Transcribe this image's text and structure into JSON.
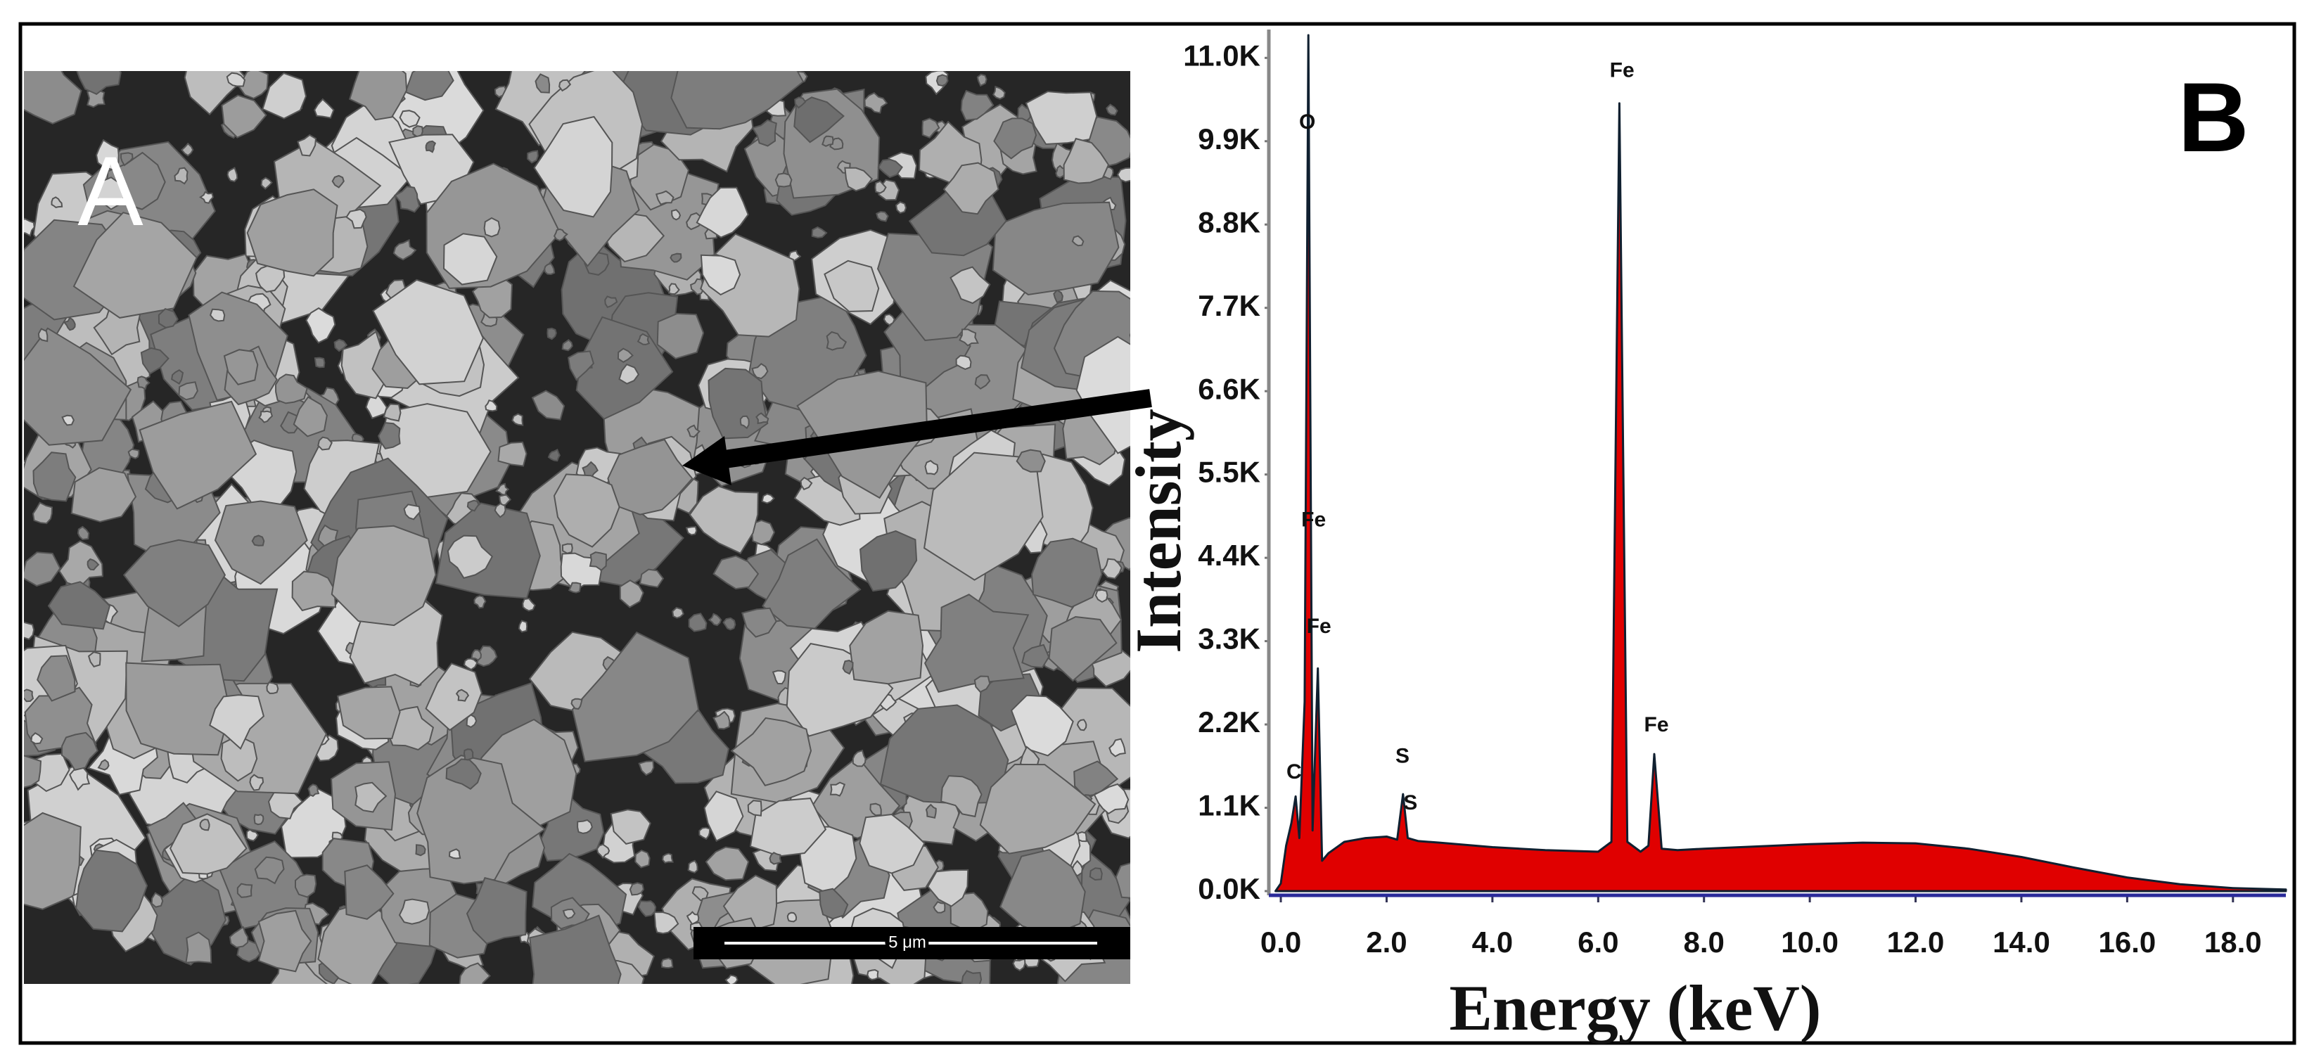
{
  "panel_labels": [
    "A",
    "B"
  ],
  "scale_bar": "5 μm",
  "chart_data": {
    "type": "area",
    "x_label": "Energy (keV)",
    "y_label": "Intensity",
    "color": "#e00000",
    "line_color": "#102030",
    "x": [
      -0.1,
      0.0,
      0.1,
      0.2,
      0.28,
      0.35,
      0.45,
      0.52,
      0.6,
      0.7,
      0.78,
      0.9,
      1.2,
      1.6,
      2.0,
      2.2,
      2.31,
      2.4,
      2.6,
      3.0,
      4.0,
      5.0,
      6.0,
      6.25,
      6.4,
      6.55,
      6.8,
      6.95,
      7.06,
      7.2,
      7.5,
      8.0,
      9.0,
      10.0,
      11.0,
      12.0,
      13.0,
      14.0,
      15.0,
      16.0,
      17.0,
      18.0,
      19.0
    ],
    "values": [
      0,
      100,
      600,
      900,
      1250,
      700,
      2500,
      11300,
      800,
      2940,
      400,
      500,
      650,
      700,
      720,
      680,
      1280,
      700,
      660,
      640,
      580,
      540,
      520,
      650,
      10400,
      650,
      520,
      600,
      1810,
      560,
      540,
      560,
      590,
      620,
      640,
      630,
      560,
      450,
      310,
      180,
      90,
      40,
      20
    ],
    "annotations": [
      {
        "text": "C",
        "x": 0.25,
        "y": 1560
      },
      {
        "text": "O",
        "x": 0.5,
        "y": 10140
      },
      {
        "text": "Fe",
        "x": 0.62,
        "y": 4890
      },
      {
        "text": "Fe",
        "x": 0.72,
        "y": 3480
      },
      {
        "text": "S",
        "x": 2.3,
        "y": 1770
      },
      {
        "text": "S",
        "x": 2.45,
        "y": 1150
      },
      {
        "text": "Fe",
        "x": 6.45,
        "y": 10820
      },
      {
        "text": "Fe",
        "x": 7.1,
        "y": 2180
      }
    ],
    "xlim": [
      -0.2,
      19.0
    ],
    "ylim": [
      0,
      11300
    ],
    "xticks": [
      {
        "value": 0,
        "label": "0.0"
      },
      {
        "value": 2,
        "label": "2.0"
      },
      {
        "value": 4,
        "label": "4.0"
      },
      {
        "value": 6,
        "label": "6.0"
      },
      {
        "value": 8,
        "label": "8.0"
      },
      {
        "value": 10,
        "label": "10.0"
      },
      {
        "value": 12,
        "label": "12.0"
      },
      {
        "value": 14,
        "label": "14.0"
      },
      {
        "value": 16,
        "label": "16.0"
      },
      {
        "value": 18,
        "label": "18.0"
      }
    ],
    "yticks": [
      {
        "value": 0,
        "label": "0.0K"
      },
      {
        "value": 1100,
        "label": "1.1K"
      },
      {
        "value": 2200,
        "label": "2.2K"
      },
      {
        "value": 3300,
        "label": "3.3K"
      },
      {
        "value": 4400,
        "label": "4.4K"
      },
      {
        "value": 5500,
        "label": "5.5K"
      },
      {
        "value": 6600,
        "label": "6.6K"
      },
      {
        "value": 7700,
        "label": "7.7K"
      },
      {
        "value": 8800,
        "label": "8.8K"
      },
      {
        "value": 9900,
        "label": "9.9K"
      },
      {
        "value": 11000,
        "label": "11.0K"
      }
    ]
  }
}
